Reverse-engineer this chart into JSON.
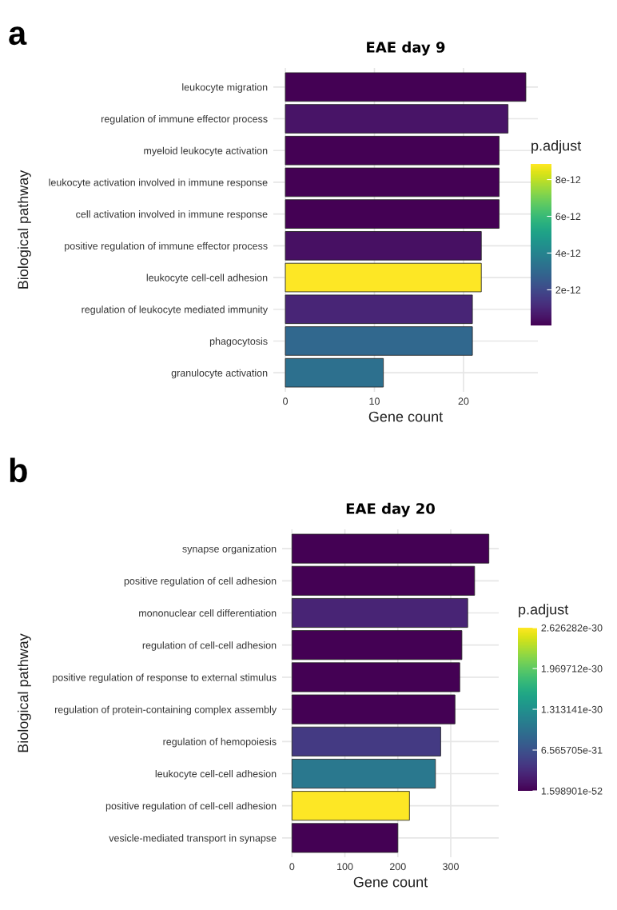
{
  "chart_data": [
    {
      "type": "bar",
      "orientation": "horizontal",
      "title": "EAE day 9",
      "xlabel": "Gene count",
      "ylabel": "Biological pathway",
      "clabel": "p.adjust",
      "annotations": [
        "a"
      ],
      "categories": [
        "leukocyte migration",
        "regulation of immune effector process",
        "myeloid leukocyte activation",
        "leukocyte activation involved in immune response",
        "cell activation involved in immune response",
        "positive regulation of immune effector process",
        "leukocyte cell-cell adhesion",
        "regulation of leukocyte mediated immunity",
        "phagocytosis",
        "granulocyte activation"
      ],
      "values": [
        27,
        25,
        24,
        24,
        24,
        22,
        22,
        21,
        21,
        11
      ],
      "colors": [
        "#440154",
        "#481467",
        "#440154",
        "#440154",
        "#440154",
        "#471063",
        "#fde725",
        "#482576",
        "#31688e",
        "#2d708e"
      ],
      "xlim": [
        -1.35,
        28.35
      ],
      "xticks": [
        0,
        10,
        20
      ],
      "clim": [
        6e-14,
        8.85e-12
      ],
      "cticks": [
        2e-12,
        4e-12,
        6e-12,
        8e-12
      ],
      "grid": true
    },
    {
      "type": "bar",
      "orientation": "horizontal",
      "title": "EAE day 20",
      "xlabel": "Gene count",
      "ylabel": "Biological pathway",
      "clabel": "p.adjust",
      "annotations": [
        "b"
      ],
      "categories": [
        "synapse organization",
        "positive regulation of cell adhesion",
        "mononuclear cell differentiation",
        "regulation of cell-cell adhesion",
        "positive regulation of response to external stimulus",
        "regulation of protein-containing complex assembly",
        "regulation of hemopoiesis",
        "leukocyte cell-cell adhesion",
        "positive regulation of cell-cell adhesion",
        "vesicle-mediated transport in synapse"
      ],
      "values": [
        372,
        345,
        332,
        321,
        317,
        308,
        281,
        271,
        222,
        200
      ],
      "colors": [
        "#440154",
        "#440154",
        "#482475",
        "#440154",
        "#440154",
        "#440154",
        "#443a83",
        "#2a788e",
        "#fde725",
        "#440154"
      ],
      "xlim": [
        -18.6,
        390.6
      ],
      "xticks": [
        0,
        100,
        200,
        300
      ],
      "clim": [
        1.598901e-52,
        2.626282e-30
      ],
      "cticks": [
        1.598901e-52,
        6.565705e-31,
        1.313141e-30,
        1.969712e-30,
        2.626282e-30
      ],
      "grid": true
    }
  ]
}
